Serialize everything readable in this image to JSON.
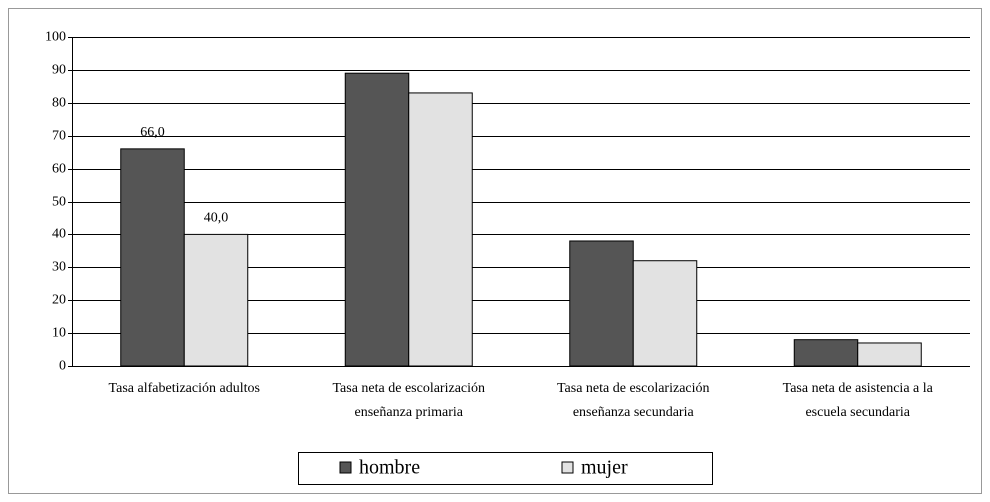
{
  "chart_data": {
    "type": "bar",
    "categories": [
      [
        "Tasa alfabetización adultos"
      ],
      [
        "Tasa neta de escolarización",
        "enseñanza primaria"
      ],
      [
        "Tasa neta de escolarización",
        "enseñanza secundaria"
      ],
      [
        "Tasa neta de asistencia a la",
        "escuela secundaria"
      ]
    ],
    "series": [
      {
        "name": "hombre",
        "color": "#555555",
        "values": [
          66,
          89,
          38,
          8
        ],
        "value_labels": [
          "66,0",
          null,
          null,
          null
        ]
      },
      {
        "name": "mujer",
        "color": "#e2e2e2",
        "values": [
          40,
          83,
          32,
          7
        ],
        "value_labels": [
          "40,0",
          null,
          null,
          null
        ]
      }
    ],
    "ylim": [
      0,
      100
    ],
    "yticks": [
      0,
      10,
      20,
      30,
      40,
      50,
      60,
      70,
      80,
      90,
      100
    ],
    "grid": true
  }
}
